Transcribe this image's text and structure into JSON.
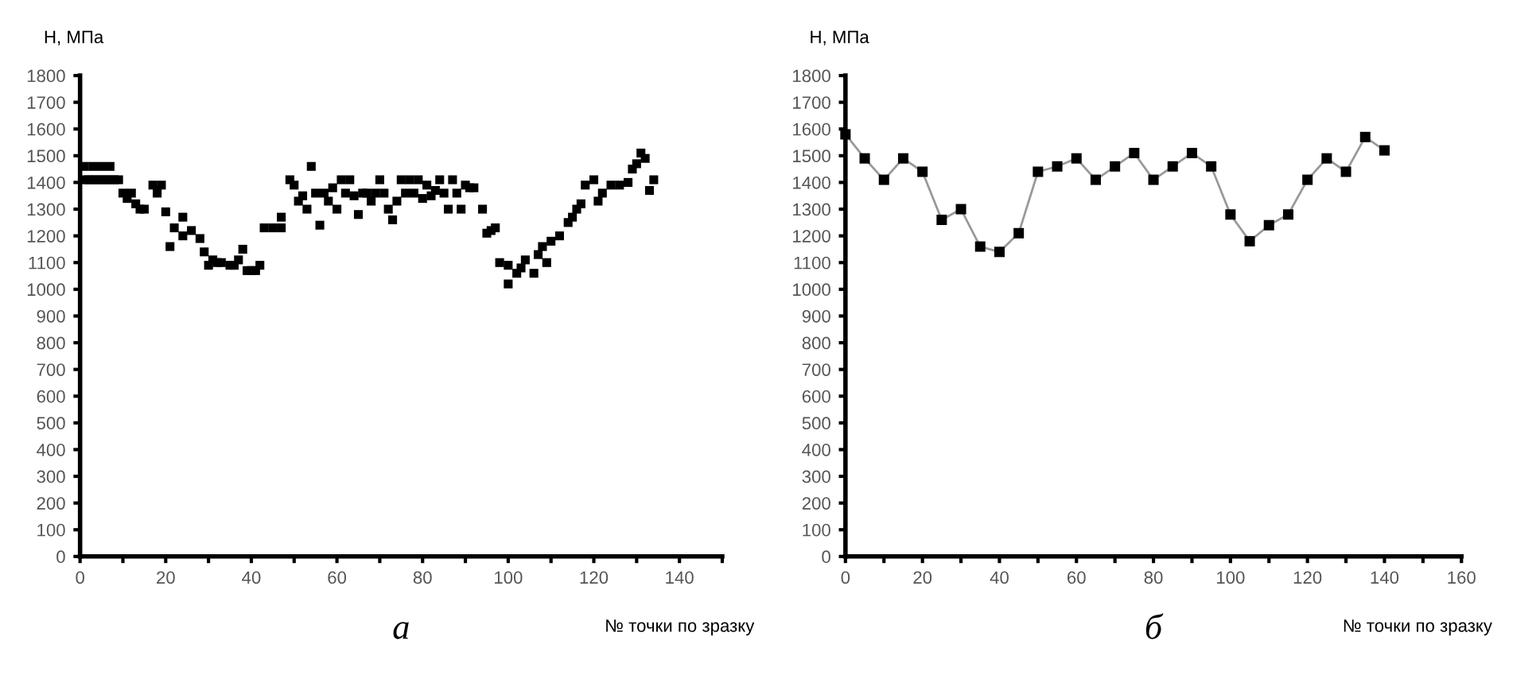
{
  "chart_data": [
    {
      "type": "scatter",
      "ylabel": "H, МПа",
      "xlabel": "№ точки по зразку",
      "annotations": [
        "а"
      ],
      "marker": "square",
      "grid": false,
      "legend": false,
      "xlim": [
        0,
        150
      ],
      "ylim": [
        0,
        1800
      ],
      "xticks": [
        0,
        {
          "value": 10,
          "label": null
        },
        20,
        {
          "value": 30,
          "label": null
        },
        40,
        {
          "value": 50,
          "label": null
        },
        60,
        {
          "value": 70,
          "label": null
        },
        80,
        {
          "value": 90,
          "label": null
        },
        100,
        {
          "value": 110,
          "label": null
        },
        120,
        {
          "value": 130,
          "label": null
        },
        140,
        {
          "value": 150,
          "label": null
        }
      ],
      "yticks": [
        0,
        100,
        200,
        300,
        400,
        500,
        600,
        700,
        800,
        900,
        1000,
        1100,
        1200,
        1300,
        1400,
        1500,
        1600,
        1700,
        1800
      ],
      "series": [
        {
          "color": "#000000",
          "x": [
            1,
            3,
            5,
            7,
            1,
            2,
            3,
            4,
            5,
            6,
            7,
            8,
            9,
            10,
            11,
            12,
            13,
            14,
            15,
            17,
            18,
            19,
            18,
            20,
            21,
            22,
            24,
            24,
            26,
            28,
            29,
            30,
            31,
            32,
            33,
            35,
            36,
            37,
            38,
            39,
            40,
            41,
            42,
            43,
            45,
            47,
            47,
            49,
            50,
            51,
            52,
            53,
            54,
            55,
            56,
            57,
            58,
            59,
            60,
            61,
            62,
            63,
            64,
            65,
            66,
            67,
            68,
            69,
            70,
            71,
            72,
            73,
            74,
            75,
            76,
            77,
            78,
            79,
            80,
            81,
            82,
            83,
            84,
            85,
            86,
            87,
            88,
            89,
            90,
            91,
            92,
            94,
            95,
            96,
            97,
            98,
            100,
            100,
            102,
            103,
            104,
            106,
            107,
            108,
            109,
            110,
            112,
            114,
            115,
            116,
            117,
            118,
            120,
            121,
            122,
            124,
            126,
            128,
            129,
            130,
            131,
            132,
            133,
            134
          ],
          "values": [
            1460,
            1460,
            1460,
            1460,
            1410,
            1410,
            1410,
            1410,
            1410,
            1410,
            1410,
            1410,
            1410,
            1360,
            1340,
            1360,
            1320,
            1300,
            1300,
            1390,
            1370,
            1390,
            1360,
            1290,
            1160,
            1230,
            1270,
            1200,
            1220,
            1190,
            1140,
            1090,
            1110,
            1100,
            1100,
            1090,
            1090,
            1110,
            1150,
            1070,
            1070,
            1070,
            1090,
            1230,
            1230,
            1230,
            1270,
            1410,
            1390,
            1330,
            1350,
            1300,
            1460,
            1360,
            1240,
            1360,
            1330,
            1380,
            1300,
            1410,
            1360,
            1410,
            1350,
            1280,
            1360,
            1360,
            1330,
            1360,
            1410,
            1360,
            1300,
            1260,
            1330,
            1410,
            1360,
            1410,
            1360,
            1410,
            1340,
            1390,
            1350,
            1370,
            1410,
            1360,
            1300,
            1410,
            1360,
            1300,
            1390,
            1380,
            1380,
            1300,
            1210,
            1220,
            1230,
            1100,
            1090,
            1020,
            1060,
            1080,
            1110,
            1060,
            1130,
            1160,
            1100,
            1180,
            1200,
            1250,
            1270,
            1300,
            1320,
            1390,
            1410,
            1330,
            1360,
            1390,
            1390,
            1400,
            1450,
            1470,
            1510,
            1490,
            1370,
            1410
          ]
        }
      ]
    },
    {
      "type": "line",
      "ylabel": "H, МПа",
      "xlabel": "№ точки по зразку",
      "annotations": [
        "б"
      ],
      "marker": "square",
      "line_style": "solid",
      "grid": false,
      "legend": false,
      "xlim": [
        0,
        160
      ],
      "ylim": [
        0,
        1800
      ],
      "xticks": [
        0,
        {
          "value": 10,
          "label": null
        },
        20,
        {
          "value": 30,
          "label": null
        },
        40,
        {
          "value": 50,
          "label": null
        },
        60,
        {
          "value": 70,
          "label": null
        },
        80,
        {
          "value": 90,
          "label": null
        },
        100,
        {
          "value": 110,
          "label": null
        },
        120,
        {
          "value": 130,
          "label": null
        },
        140,
        {
          "value": 150,
          "label": null
        },
        160
      ],
      "yticks": [
        0,
        100,
        200,
        300,
        400,
        500,
        600,
        700,
        800,
        900,
        1000,
        1100,
        1200,
        1300,
        1400,
        1500,
        1600,
        1700,
        1800
      ],
      "series": [
        {
          "color": "#000000",
          "x": [
            0,
            5,
            10,
            15,
            20,
            25,
            30,
            35,
            40,
            45,
            50,
            55,
            60,
            65,
            70,
            75,
            80,
            85,
            90,
            95,
            100,
            105,
            110,
            115,
            120,
            125,
            130,
            135,
            140
          ],
          "values": [
            1580,
            1490,
            1410,
            1490,
            1440,
            1260,
            1300,
            1160,
            1140,
            1210,
            1440,
            1460,
            1490,
            1410,
            1460,
            1510,
            1410,
            1460,
            1510,
            1460,
            1280,
            1180,
            1240,
            1280,
            1410,
            1490,
            1440,
            1570,
            1520
          ]
        }
      ]
    }
  ]
}
